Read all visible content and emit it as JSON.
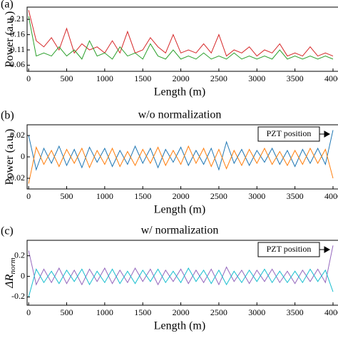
{
  "chart_data": [
    {
      "type": "line",
      "panel_label": "(a)",
      "y_label": "Power (a.u.)",
      "x_label": "Length (m)",
      "x": [
        0,
        100,
        200,
        300,
        400,
        500,
        600,
        700,
        800,
        900,
        1000,
        1100,
        1200,
        1300,
        1400,
        1500,
        1600,
        1700,
        1800,
        1900,
        2000,
        2100,
        2200,
        2300,
        2400,
        2500,
        2600,
        2700,
        2800,
        2900,
        3000,
        3100,
        3200,
        3300,
        3400,
        3500,
        3600,
        3700,
        3800,
        3900,
        4000
      ],
      "series": [
        {
          "color": "#d62728",
          "values": [
            0.24,
            0.14,
            0.12,
            0.15,
            0.11,
            0.18,
            0.1,
            0.13,
            0.11,
            0.12,
            0.1,
            0.14,
            0.1,
            0.17,
            0.1,
            0.11,
            0.15,
            0.12,
            0.1,
            0.16,
            0.1,
            0.11,
            0.1,
            0.13,
            0.1,
            0.16,
            0.09,
            0.11,
            0.1,
            0.12,
            0.09,
            0.11,
            0.1,
            0.13,
            0.09,
            0.1,
            0.09,
            0.12,
            0.09,
            0.1,
            0.09
          ]
        },
        {
          "color": "#2ca02c",
          "values": [
            0.22,
            0.09,
            0.1,
            0.09,
            0.12,
            0.09,
            0.11,
            0.08,
            0.14,
            0.09,
            0.1,
            0.08,
            0.12,
            0.09,
            0.1,
            0.08,
            0.13,
            0.09,
            0.08,
            0.11,
            0.08,
            0.09,
            0.08,
            0.1,
            0.08,
            0.09,
            0.08,
            0.1,
            0.08,
            0.09,
            0.08,
            0.09,
            0.08,
            0.11,
            0.08,
            0.09,
            0.08,
            0.09,
            0.08,
            0.09,
            0.08
          ]
        }
      ],
      "xlim": [
        -20,
        4000
      ],
      "xticks": [
        0,
        500,
        1000,
        1500,
        2000,
        2500,
        3000,
        3500,
        4000
      ],
      "ylim": [
        0.04,
        0.25
      ],
      "yticks": [
        0.06,
        0.11,
        0.16,
        0.21
      ]
    },
    {
      "type": "line",
      "panel_label": "(b)",
      "title": "w/o normalization",
      "y_label": "Power (a.u.)",
      "x_label": "Length (m)",
      "annotation": "PZT position",
      "x": [
        0,
        100,
        200,
        300,
        400,
        500,
        600,
        700,
        800,
        900,
        1000,
        1100,
        1200,
        1300,
        1400,
        1500,
        1600,
        1700,
        1800,
        1900,
        2000,
        2100,
        2200,
        2300,
        2400,
        2500,
        2600,
        2700,
        2800,
        2900,
        3000,
        3100,
        3200,
        3300,
        3400,
        3500,
        3600,
        3700,
        3800,
        3900,
        4000
      ],
      "series": [
        {
          "color": "#1f77b4",
          "values": [
            0.02,
            -0.012,
            0.008,
            -0.006,
            0.01,
            -0.008,
            0.007,
            -0.01,
            0.009,
            -0.005,
            0.008,
            -0.009,
            0.006,
            -0.007,
            0.01,
            -0.006,
            0.008,
            -0.01,
            0.007,
            -0.005,
            0.009,
            -0.008,
            0.006,
            -0.007,
            0.008,
            -0.012,
            0.014,
            -0.006,
            0.007,
            -0.008,
            0.006,
            -0.005,
            0.008,
            -0.007,
            0.006,
            -0.009,
            0.007,
            -0.006,
            0.008,
            -0.007,
            0.025
          ]
        },
        {
          "color": "#ff7f0e",
          "values": [
            -0.025,
            0.009,
            -0.007,
            0.006,
            -0.009,
            0.007,
            -0.006,
            0.008,
            -0.01,
            0.006,
            -0.007,
            0.008,
            -0.009,
            0.005,
            -0.008,
            0.007,
            -0.006,
            0.009,
            -0.008,
            0.006,
            -0.007,
            0.01,
            -0.006,
            0.008,
            -0.009,
            0.007,
            -0.011,
            0.006,
            -0.008,
            0.007,
            -0.006,
            0.008,
            -0.007,
            0.005,
            -0.008,
            0.006,
            -0.007,
            0.008,
            -0.006,
            0.007,
            -0.02
          ]
        }
      ],
      "xlim": [
        -20,
        4000
      ],
      "xticks": [
        0,
        500,
        1000,
        1500,
        2000,
        2500,
        3000,
        3500,
        4000
      ],
      "ylim": [
        -0.03,
        0.03
      ],
      "yticks": [
        -0.02,
        0,
        0.02
      ]
    },
    {
      "type": "line",
      "panel_label": "(c)",
      "title": "w/ normalization",
      "y_label": "ΔR",
      "y_label_sub": "norm",
      "x_label": "Length (m)",
      "annotation": "PZT position",
      "x": [
        0,
        100,
        200,
        300,
        400,
        500,
        600,
        700,
        800,
        900,
        1000,
        1100,
        1200,
        1300,
        1400,
        1500,
        1600,
        1700,
        1800,
        1900,
        2000,
        2100,
        2200,
        2300,
        2400,
        2500,
        2600,
        2700,
        2800,
        2900,
        3000,
        3100,
        3200,
        3300,
        3400,
        3500,
        3600,
        3700,
        3800,
        3900,
        4000
      ],
      "series": [
        {
          "color": "#9467bd",
          "values": [
            0.25,
            -0.08,
            0.07,
            -0.06,
            0.08,
            -0.07,
            0.06,
            -0.08,
            0.07,
            -0.05,
            0.08,
            -0.07,
            0.06,
            -0.06,
            0.08,
            -0.05,
            0.07,
            -0.08,
            0.06,
            -0.05,
            0.07,
            -0.07,
            0.06,
            -0.06,
            0.07,
            -0.08,
            0.09,
            -0.05,
            0.06,
            -0.07,
            0.06,
            -0.05,
            0.07,
            -0.06,
            0.05,
            -0.07,
            0.06,
            -0.05,
            0.07,
            -0.06,
            0.3
          ]
        },
        {
          "color": "#17becf",
          "values": [
            -0.2,
            0.07,
            -0.06,
            0.05,
            -0.07,
            0.06,
            -0.05,
            0.07,
            -0.08,
            0.05,
            -0.06,
            0.07,
            -0.07,
            0.05,
            -0.07,
            0.06,
            -0.05,
            0.07,
            -0.06,
            0.05,
            -0.06,
            0.08,
            -0.05,
            0.06,
            -0.07,
            0.06,
            -0.08,
            0.05,
            -0.06,
            0.06,
            -0.05,
            0.07,
            -0.06,
            0.05,
            -0.06,
            0.05,
            -0.06,
            0.07,
            -0.05,
            0.06,
            -0.15
          ]
        }
      ],
      "xlim": [
        -20,
        4000
      ],
      "xticks": [
        0,
        500,
        1000,
        1500,
        2000,
        2500,
        3000,
        3500,
        4000
      ],
      "ylim": [
        -0.28,
        0.35
      ],
      "yticks": [
        -0.2,
        0,
        0.2
      ]
    }
  ]
}
